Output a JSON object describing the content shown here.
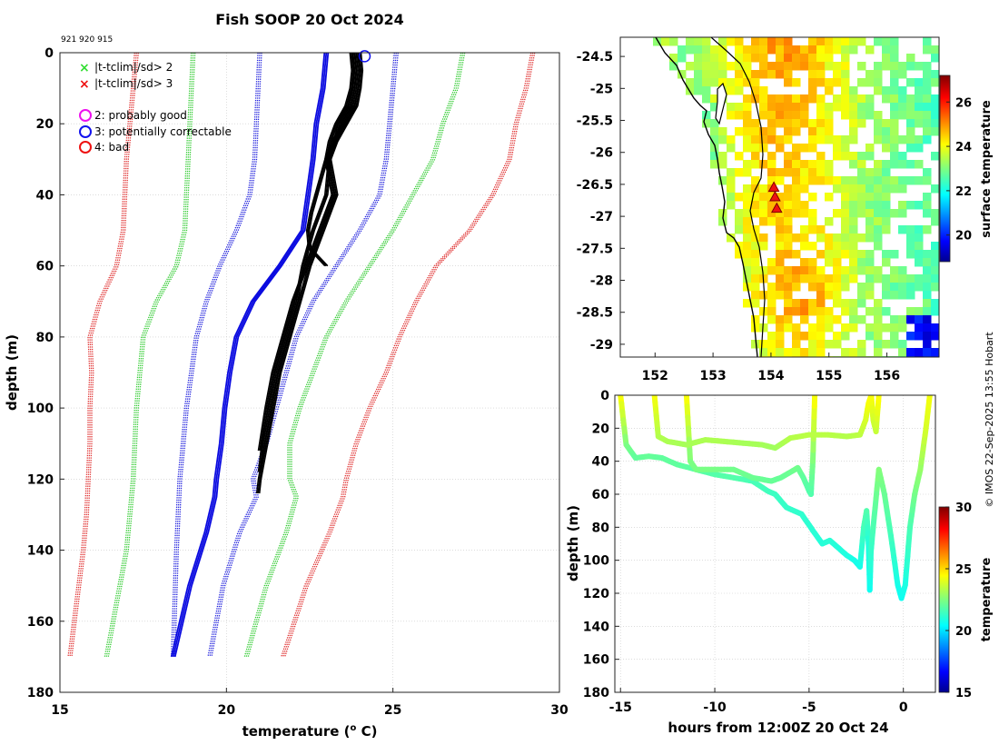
{
  "figure": {
    "title": "Fish SOOP 20 Oct 2024",
    "station_ids": "921 920 915",
    "credit": "© IMOS 22-Sep-2025 13:55 Hobart"
  },
  "chart_data": [
    {
      "type": "line",
      "name": "profile",
      "xlabel": "temperature (",
      "xlabel_sup": "o",
      "xlabel_tail": " C)",
      "ylabel": "depth (m)",
      "xlim": [
        15,
        30
      ],
      "ylim": [
        0,
        180
      ],
      "xticks": [
        "15",
        "20",
        "25",
        "30"
      ],
      "yticks": [
        "0",
        "20",
        "40",
        "60",
        "80",
        "100",
        "120",
        "140",
        "160",
        "180"
      ],
      "grid": true,
      "legend": [
        {
          "marker": "x",
          "color": "#33dd33",
          "label": "|t-tclim|/sd> 2"
        },
        {
          "marker": "x",
          "color": "#ee1111",
          "label": "|t-tclim|/sd> 3"
        },
        {
          "marker": "o",
          "color": "#ee11ee",
          "label": "2: probably good"
        },
        {
          "marker": "o",
          "color": "#1111ee",
          "label": "3: potentially correctable"
        },
        {
          "marker": "o",
          "color": "#ee1111",
          "label": "4: bad"
        }
      ],
      "climatology": [
        {
          "name": "clim-low-3sd",
          "color": "#e03030",
          "x": [
            17.3,
            17.2,
            17.1,
            17.0,
            16.95,
            16.9,
            16.7,
            16.2,
            15.9,
            15.95,
            15.9,
            15.9,
            15.85,
            15.8,
            15.7,
            15.5,
            15.3
          ],
          "y": [
            0,
            10,
            20,
            30,
            40,
            50,
            60,
            70,
            80,
            90,
            100,
            110,
            120,
            130,
            140,
            155,
            170
          ]
        },
        {
          "name": "clim-high-3sd",
          "color": "#e03030",
          "x": [
            29.2,
            29.0,
            28.7,
            28.5,
            28.0,
            27.3,
            26.3,
            25.7,
            25.2,
            24.8,
            24.3,
            23.9,
            23.6,
            23.5,
            23.1,
            22.4,
            21.7
          ],
          "y": [
            0,
            10,
            20,
            30,
            40,
            50,
            60,
            70,
            80,
            90,
            100,
            110,
            120,
            125,
            135,
            150,
            170
          ]
        },
        {
          "name": "clim-low-2sd",
          "color": "#33cc33",
          "x": [
            19.0,
            18.95,
            18.9,
            18.85,
            18.8,
            18.75,
            18.5,
            17.9,
            17.5,
            17.4,
            17.3,
            17.25,
            17.2,
            17.1,
            17.0,
            16.7,
            16.4
          ],
          "y": [
            0,
            10,
            20,
            30,
            40,
            50,
            60,
            70,
            80,
            90,
            100,
            110,
            120,
            130,
            140,
            155,
            170
          ]
        },
        {
          "name": "clim-high-2sd",
          "color": "#33cc33",
          "x": [
            27.1,
            26.9,
            26.5,
            26.2,
            25.6,
            25.0,
            24.3,
            23.6,
            23.0,
            22.6,
            22.2,
            21.9,
            21.9,
            22.1,
            21.8,
            21.2,
            20.6
          ],
          "y": [
            0,
            10,
            20,
            30,
            40,
            50,
            60,
            70,
            80,
            90,
            100,
            110,
            120,
            125,
            135,
            150,
            170
          ]
        },
        {
          "name": "clim-low-sd",
          "color": "#2222dd",
          "x": [
            21.0,
            20.95,
            20.9,
            20.85,
            20.7,
            20.3,
            19.8,
            19.4,
            19.1,
            18.95,
            18.8,
            18.7,
            18.6,
            18.5,
            18.4
          ],
          "y": [
            0,
            10,
            20,
            30,
            40,
            50,
            60,
            70,
            80,
            90,
            100,
            110,
            120,
            140,
            170
          ]
        },
        {
          "name": "clim-high-sd",
          "color": "#2222dd",
          "x": [
            25.1,
            25.0,
            24.9,
            24.8,
            24.6,
            24.0,
            23.3,
            22.6,
            22.1,
            21.8,
            21.5,
            21.2,
            20.8,
            20.9,
            20.4,
            19.9,
            19.5
          ],
          "y": [
            0,
            10,
            20,
            30,
            40,
            50,
            60,
            70,
            80,
            90,
            100,
            110,
            120,
            125,
            135,
            150,
            170
          ]
        }
      ],
      "mean_profile": {
        "name": "clim-mean",
        "color": "#0a0ae0",
        "x": [
          23.0,
          22.9,
          22.7,
          22.6,
          22.45,
          22.3,
          21.6,
          20.8,
          20.3,
          20.1,
          19.95,
          19.85,
          19.7,
          19.65,
          19.4,
          18.9,
          18.4
        ],
        "y": [
          0,
          10,
          20,
          30,
          40,
          50,
          60,
          70,
          80,
          90,
          100,
          110,
          120,
          125,
          135,
          150,
          170
        ]
      },
      "observed_profiles": [
        {
          "name": "cast-1",
          "x": [
            24.0,
            24.05,
            24.0,
            23.9,
            23.6,
            23.3,
            23.1,
            23.3,
            22.9,
            22.5,
            22.2,
            21.9,
            21.6,
            21.4,
            21.2,
            21.0,
            20.95
          ],
          "y": [
            0,
            5,
            10,
            15,
            20,
            25,
            30,
            40,
            50,
            60,
            70,
            80,
            90,
            100,
            110,
            120,
            124
          ]
        },
        {
          "name": "cast-2",
          "x": [
            23.8,
            23.85,
            23.8,
            23.7,
            23.4,
            23.25,
            23.1,
            23.0,
            22.6,
            22.3,
            22.1,
            21.8,
            21.5,
            21.3,
            21.1,
            21.0
          ],
          "y": [
            0,
            5,
            10,
            15,
            20,
            25,
            30,
            40,
            50,
            60,
            70,
            80,
            90,
            100,
            110,
            118
          ]
        },
        {
          "name": "cast-3",
          "x": [
            23.9,
            23.95,
            23.9,
            23.8,
            23.5,
            23.2,
            23.0,
            22.7,
            22.55,
            22.45,
            22.5,
            23.0
          ],
          "y": [
            0,
            5,
            10,
            15,
            20,
            25,
            30,
            40,
            45,
            50,
            55,
            60
          ]
        },
        {
          "name": "cast-4",
          "x": [
            23.75,
            23.8,
            23.75,
            23.6,
            23.3,
            23.1,
            23.0,
            23.2,
            22.8,
            22.4,
            22.0,
            21.7,
            21.4,
            21.2,
            21.0
          ],
          "y": [
            0,
            5,
            10,
            15,
            20,
            25,
            30,
            40,
            50,
            60,
            70,
            80,
            90,
            100,
            112
          ]
        }
      ],
      "flag_marker": {
        "x": 24.15,
        "y": 1,
        "color": "#1111ee"
      }
    },
    {
      "type": "heatmap",
      "name": "map",
      "xlim": [
        151.4,
        156.9
      ],
      "ylim": [
        -29.2,
        -24.2
      ],
      "xticks": [
        "152",
        "153",
        "154",
        "155",
        "156"
      ],
      "yticks": [
        "-24.5",
        "-25",
        "-25.5",
        "-26",
        "-26.5",
        "-27",
        "-27.5",
        "-28",
        "-28.5",
        "-29"
      ],
      "colorbar_label": "surface temperature",
      "colorbar_range": [
        18.8,
        27.2
      ],
      "colorbar_ticks": [
        "20",
        "22",
        "24",
        "26"
      ],
      "stations": [
        {
          "lon": 154.05,
          "lat": -26.55
        },
        {
          "lon": 154.07,
          "lat": -26.7
        },
        {
          "lon": 154.1,
          "lat": -26.88
        }
      ]
    },
    {
      "type": "scatter",
      "name": "time-depth",
      "xlabel": "hours from 12:00Z 20 Oct 24",
      "ylabel": "depth (m)",
      "xlim": [
        -15.3,
        1.7
      ],
      "ylim": [
        0,
        180
      ],
      "xticks": [
        "-15",
        "-10",
        "-5",
        "0"
      ],
      "yticks": [
        "0",
        "20",
        "40",
        "60",
        "80",
        "100",
        "120",
        "140",
        "160",
        "180"
      ],
      "colorbar_label": "temperature",
      "colorbar_range": [
        15,
        30
      ],
      "colorbar_ticks": [
        "15",
        "20",
        "25",
        "30"
      ],
      "tracks": [
        {
          "name": "track-deep",
          "t": [
            -15.0,
            -14.7,
            -14.2,
            -13.5,
            -12.8,
            -12.0,
            -11.0,
            -10.0,
            -9.0,
            -8.0,
            -7.2,
            -6.8,
            -6.2,
            -5.4,
            -4.8,
            -4.3,
            -3.9,
            -3.5,
            -3.0,
            -2.6,
            -2.3,
            -2.1,
            -1.95,
            -1.85,
            -1.78,
            -1.72,
            -1.6,
            -1.3,
            -1.0,
            -0.6,
            -0.3,
            -0.1,
            0.1,
            0.35,
            0.6,
            0.9,
            1.2,
            1.4
          ],
          "d": [
            0,
            30,
            38,
            37,
            38,
            42,
            45,
            48,
            50,
            52,
            58,
            60,
            68,
            72,
            82,
            90,
            88,
            92,
            97,
            100,
            104,
            80,
            70,
            90,
            118,
            95,
            80,
            45,
            60,
            90,
            115,
            123,
            115,
            80,
            60,
            45,
            20,
            0
          ],
          "temp": [
            24.5,
            22.5,
            22.0,
            22.1,
            22.0,
            22.0,
            21.9,
            21.8,
            21.8,
            21.6,
            21.5,
            21.4,
            21.3,
            21.2,
            21.1,
            21.0,
            21.1,
            21.0,
            20.9,
            20.8,
            20.7,
            21.5,
            21.8,
            21.0,
            20.6,
            21.2,
            21.6,
            22.6,
            22.2,
            21.4,
            20.8,
            20.6,
            20.8,
            21.6,
            22.3,
            22.8,
            23.8,
            24.3
          ]
        },
        {
          "name": "track-mid",
          "t": [
            -11.5,
            -11.3,
            -11.0,
            -10.0,
            -9.0,
            -8.0,
            -7.0,
            -6.5,
            -5.9,
            -5.6,
            -5.3,
            -5.0,
            -4.9,
            -4.8,
            -4.7
          ],
          "d": [
            0,
            40,
            45,
            45,
            45,
            50,
            52,
            50,
            46,
            44,
            50,
            58,
            60,
            40,
            0
          ],
          "temp": [
            24.5,
            22.5,
            22.4,
            22.4,
            22.3,
            22.2,
            22.1,
            22.1,
            22.2,
            22.3,
            22.0,
            21.8,
            21.7,
            22.4,
            24.5
          ]
        },
        {
          "name": "track-shallow-1",
          "t": [
            -13.2,
            -13.0,
            -12.5,
            -11.5,
            -10.5,
            -9.5,
            -8.5,
            -7.5,
            -6.8,
            -6.0,
            -5.0,
            -4.0,
            -3.0,
            -2.3,
            -2.0,
            -1.85,
            -1.7
          ],
          "d": [
            0,
            25,
            28,
            30,
            27,
            28,
            29,
            30,
            32,
            26,
            24,
            24,
            25,
            24,
            15,
            5,
            0
          ],
          "temp": [
            24.4,
            23.3,
            23.2,
            23.1,
            23.2,
            23.2,
            23.1,
            23.1,
            23.0,
            23.3,
            23.4,
            23.4,
            23.3,
            23.4,
            23.8,
            24.3,
            24.5
          ]
        },
        {
          "name": "track-shallow-2",
          "t": [
            -1.7,
            -1.6,
            -1.45,
            -1.3
          ],
          "d": [
            0,
            15,
            22,
            0
          ],
          "temp": [
            24.5,
            23.8,
            23.5,
            24.5
          ]
        }
      ]
    }
  ],
  "colors": {
    "observed": "#000000",
    "station": "#ee1111",
    "coastline": "#000000"
  }
}
